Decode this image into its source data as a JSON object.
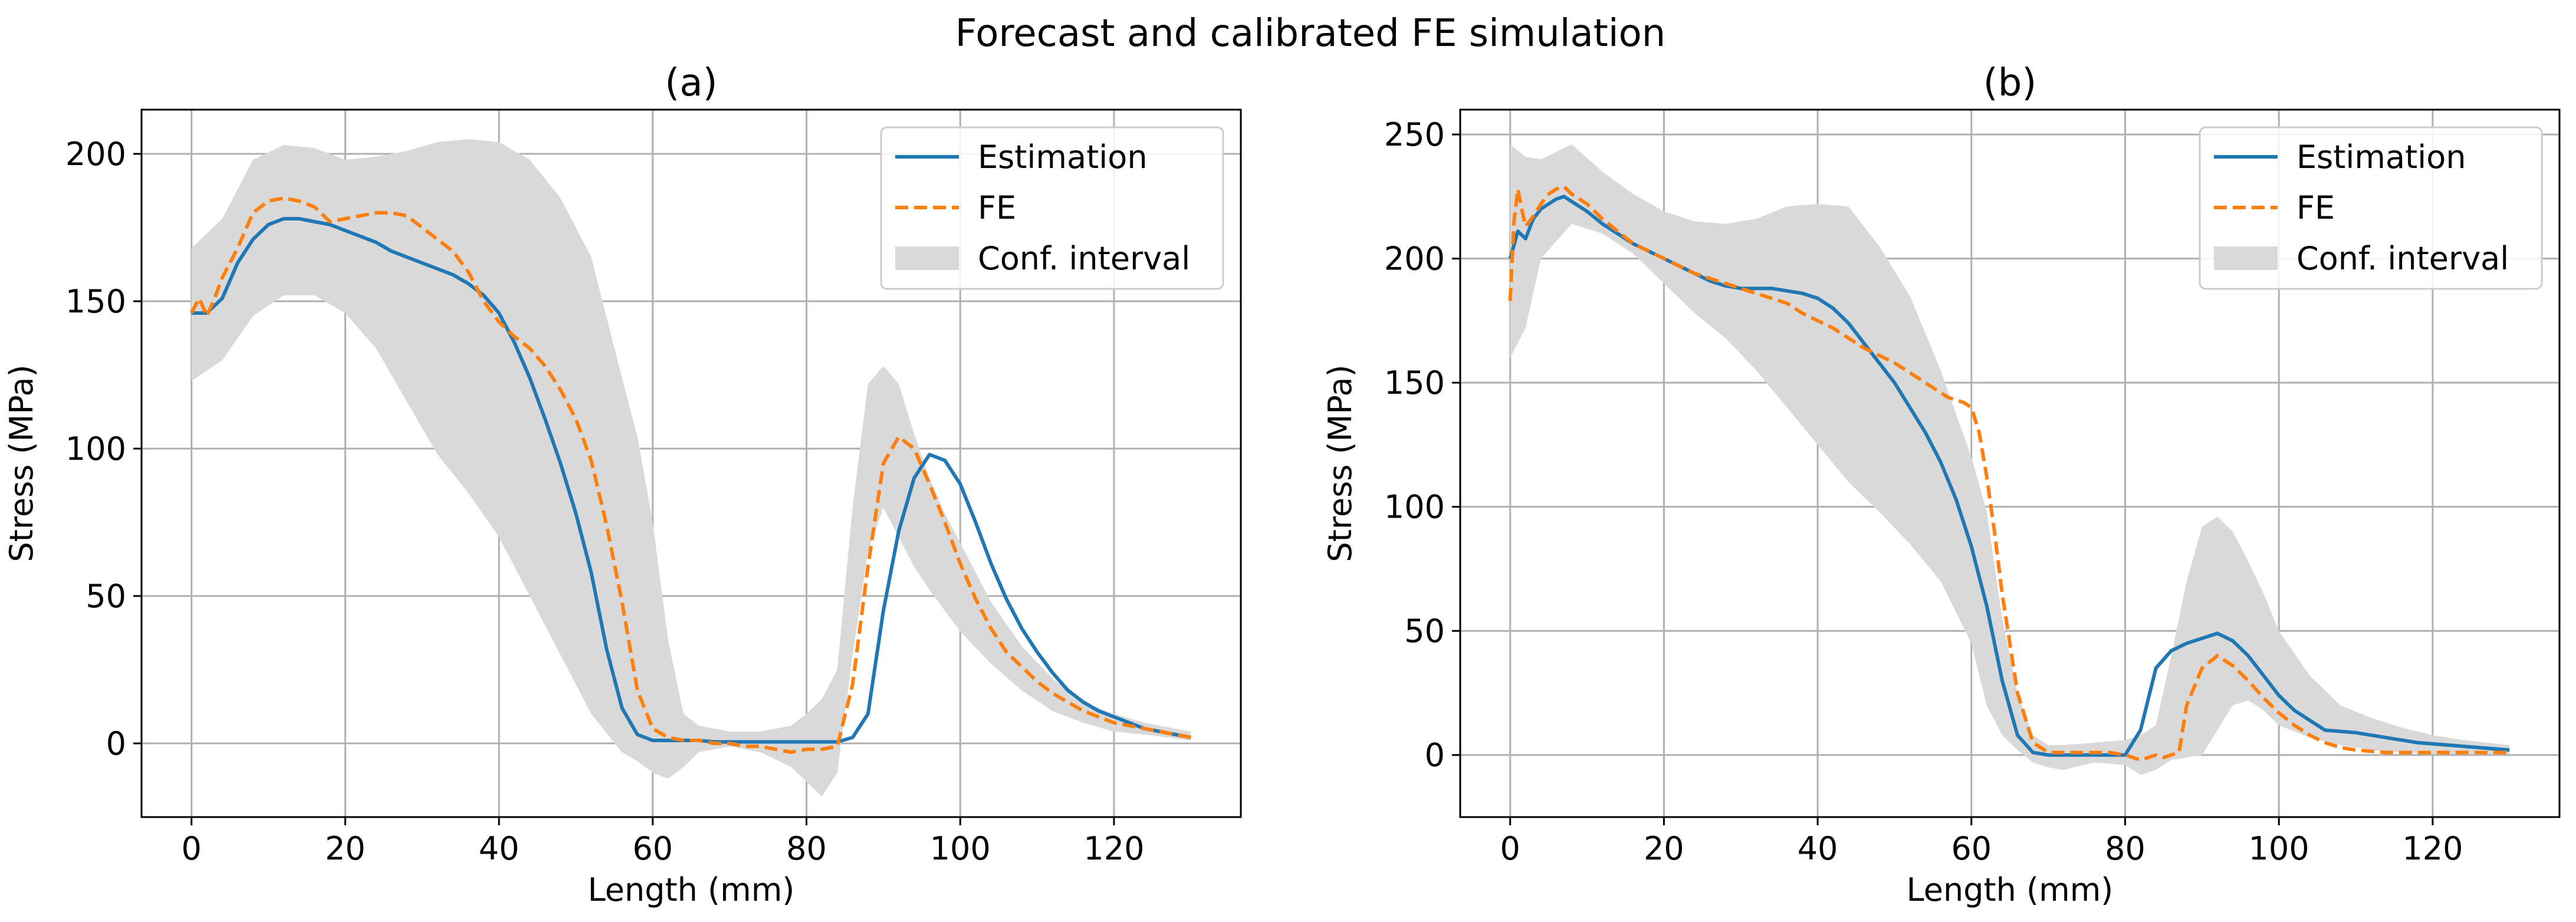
{
  "suptitle": "Forecast and calibrated FE simulation",
  "colors": {
    "estimation": "#1f77b4",
    "fe": "#ff7f0e",
    "conf": "#d9d9d9",
    "grid": "#b0b0b0"
  },
  "legend": {
    "items": [
      "Estimation",
      "FE",
      "Conf. interval"
    ],
    "placement": "upper-right"
  },
  "chart_data": [
    {
      "type": "line",
      "title": "(a)",
      "xlabel": "Length (mm)",
      "ylabel": "Stress (MPa)",
      "xlim": [
        -6.5,
        136.5
      ],
      "ylim": [
        -25,
        215
      ],
      "xticks": [
        0,
        20,
        40,
        60,
        80,
        100,
        120
      ],
      "yticks": [
        0,
        50,
        100,
        150,
        200
      ],
      "grid": true,
      "series": [
        {
          "name": "Estimation",
          "style": "solid",
          "x": [
            0,
            2,
            4,
            6,
            8,
            10,
            12,
            14,
            16,
            18,
            20,
            22,
            24,
            26,
            28,
            30,
            32,
            34,
            36,
            38,
            40,
            42,
            44,
            46,
            48,
            50,
            52,
            54,
            56,
            58,
            60,
            62,
            64,
            66,
            68,
            70,
            72,
            74,
            76,
            78,
            80,
            82,
            84,
            86,
            88,
            90,
            92,
            94,
            96,
            98,
            100,
            102,
            104,
            106,
            108,
            110,
            112,
            114,
            116,
            118,
            120,
            122,
            124,
            126,
            128,
            130
          ],
          "y": [
            146,
            146,
            151,
            163,
            171,
            176,
            178,
            178,
            177,
            176,
            174,
            172,
            170,
            167,
            165,
            163,
            161,
            159,
            156,
            152,
            146,
            136,
            124,
            110,
            95,
            78,
            58,
            32,
            12,
            3,
            1,
            1,
            1,
            1,
            0.5,
            0.5,
            0.5,
            0.5,
            0.5,
            0.5,
            0.5,
            0.5,
            0.5,
            2,
            10,
            45,
            72,
            90,
            98,
            96,
            88,
            75,
            61,
            49,
            39,
            31,
            24,
            18,
            14,
            11,
            9,
            7,
            5,
            4,
            3,
            2
          ]
        },
        {
          "name": "FE",
          "style": "dashed",
          "x": [
            0,
            1,
            2,
            3,
            4,
            6,
            8,
            10,
            12,
            14,
            16,
            18,
            20,
            22,
            24,
            26,
            28,
            30,
            32,
            34,
            36,
            38,
            40,
            42,
            44,
            46,
            48,
            50,
            52,
            54,
            56,
            58,
            60,
            62,
            64,
            66,
            68,
            70,
            72,
            74,
            76,
            78,
            80,
            82,
            84,
            86,
            88,
            90,
            92,
            94,
            96,
            98,
            100,
            102,
            104,
            106,
            108,
            110,
            112,
            114,
            116,
            118,
            120,
            122,
            124,
            126,
            128,
            130
          ],
          "y": [
            146,
            151,
            145,
            151,
            158,
            168,
            180,
            184,
            185,
            184,
            182,
            177,
            178,
            179,
            180,
            180,
            179,
            175,
            171,
            167,
            160,
            150,
            143,
            138,
            134,
            128,
            120,
            110,
            96,
            74,
            48,
            18,
            5,
            2,
            1,
            1,
            0,
            0,
            -1,
            -1,
            -2,
            -3,
            -2,
            -2,
            -1,
            20,
            60,
            95,
            104,
            100,
            88,
            75,
            61,
            49,
            39,
            31,
            26,
            21,
            17,
            14,
            11,
            9,
            7,
            6,
            5,
            4,
            3,
            2
          ]
        }
      ],
      "conf_interval": {
        "name": "Conf. interval",
        "x": [
          0,
          4,
          8,
          12,
          16,
          20,
          24,
          28,
          32,
          36,
          40,
          44,
          48,
          52,
          56,
          58,
          60,
          62,
          64,
          66,
          70,
          74,
          78,
          80,
          82,
          84,
          86,
          88,
          90,
          92,
          94,
          96,
          98,
          100,
          104,
          108,
          112,
          116,
          120,
          124,
          130
        ],
        "lower": [
          123,
          130,
          145,
          152,
          152,
          146,
          134,
          116,
          98,
          85,
          70,
          50,
          30,
          10,
          -3,
          -6,
          -10,
          -12,
          -8,
          -3,
          -1,
          -3,
          -8,
          -13,
          -18,
          -10,
          30,
          65,
          80,
          70,
          60,
          52,
          45,
          38,
          27,
          18,
          11,
          7,
          4,
          3,
          1
        ],
        "upper": [
          168,
          178,
          198,
          203,
          202,
          198,
          199,
          201,
          204,
          205,
          204,
          198,
          185,
          165,
          124,
          104,
          75,
          35,
          10,
          6,
          4,
          4,
          6,
          10,
          15,
          25,
          80,
          122,
          128,
          122,
          105,
          90,
          78,
          68,
          48,
          33,
          22,
          14,
          10,
          7,
          4
        ]
      }
    },
    {
      "type": "line",
      "title": "(b)",
      "xlabel": "Length (mm)",
      "ylabel": "Stress (MPa)",
      "xlim": [
        -6.5,
        136.5
      ],
      "ylim": [
        -25,
        260
      ],
      "xticks": [
        0,
        20,
        40,
        60,
        80,
        100,
        120
      ],
      "yticks": [
        0,
        50,
        100,
        150,
        200,
        250
      ],
      "grid": true,
      "series": [
        {
          "name": "Estimation",
          "style": "solid",
          "x": [
            0,
            1,
            2,
            3,
            4,
            5,
            6,
            7,
            8,
            10,
            12,
            14,
            16,
            18,
            20,
            22,
            24,
            26,
            28,
            30,
            32,
            34,
            36,
            38,
            40,
            42,
            44,
            46,
            48,
            50,
            52,
            54,
            56,
            58,
            60,
            62,
            64,
            66,
            68,
            70,
            72,
            74,
            76,
            78,
            80,
            82,
            84,
            86,
            88,
            90,
            92,
            94,
            96,
            98,
            100,
            102,
            104,
            106,
            110,
            114,
            118,
            122,
            126,
            130
          ],
          "y": [
            200,
            211,
            208,
            216,
            220,
            222,
            224,
            225,
            223,
            219,
            214,
            210,
            206,
            203,
            200,
            197,
            194,
            191,
            189,
            188,
            188,
            188,
            187,
            186,
            184,
            180,
            174,
            166,
            158,
            150,
            140,
            130,
            118,
            103,
            84,
            60,
            30,
            8,
            1,
            0,
            0,
            0,
            0,
            0,
            0,
            10,
            35,
            42,
            45,
            47,
            49,
            46,
            40,
            32,
            24,
            18,
            14,
            10,
            9,
            7,
            5,
            4,
            3,
            2
          ]
        },
        {
          "name": "FE",
          "style": "dashed",
          "x": [
            0,
            0.5,
            1,
            1.5,
            2,
            3,
            4,
            5,
            6,
            7,
            8,
            10,
            12,
            14,
            16,
            18,
            20,
            22,
            24,
            26,
            28,
            30,
            32,
            34,
            36,
            38,
            40,
            42,
            44,
            46,
            48,
            50,
            52,
            54,
            56,
            57,
            58,
            59,
            60,
            61,
            62,
            63,
            64,
            66,
            68,
            70,
            72,
            74,
            76,
            78,
            80,
            82,
            84,
            85,
            86,
            87,
            88,
            90,
            92,
            94,
            96,
            98,
            100,
            102,
            104,
            106,
            108,
            110,
            114,
            118,
            122,
            126,
            130
          ],
          "y": [
            183,
            215,
            228,
            220,
            213,
            217,
            222,
            226,
            228,
            229,
            226,
            222,
            216,
            211,
            206,
            203,
            200,
            197,
            194,
            192,
            190,
            188,
            186,
            184,
            182,
            178,
            175,
            172,
            168,
            164,
            161,
            158,
            154,
            150,
            146,
            144,
            143,
            142,
            140,
            130,
            112,
            90,
            65,
            25,
            5,
            1,
            1,
            1,
            1,
            1,
            0,
            -2,
            0,
            -1,
            0,
            1,
            20,
            35,
            40,
            36,
            30,
            23,
            17,
            12,
            8,
            5,
            3,
            2,
            1,
            1,
            1,
            1,
            1
          ]
        }
      ],
      "conf_interval": {
        "name": "Conf. interval",
        "x": [
          0,
          2,
          4,
          8,
          12,
          16,
          20,
          24,
          28,
          32,
          36,
          40,
          44,
          48,
          52,
          56,
          60,
          62,
          64,
          66,
          68,
          70,
          72,
          76,
          80,
          82,
          84,
          86,
          88,
          90,
          92,
          94,
          96,
          98,
          100,
          104,
          108,
          112,
          116,
          120,
          124,
          130
        ],
        "lower": [
          160,
          172,
          200,
          214,
          210,
          202,
          190,
          178,
          168,
          155,
          140,
          125,
          110,
          98,
          85,
          70,
          45,
          20,
          8,
          2,
          -3,
          -5,
          -6,
          -3,
          -4,
          -8,
          -6,
          -2,
          -1,
          0,
          10,
          20,
          22,
          18,
          12,
          7,
          4,
          2,
          1,
          0.5,
          0.3,
          0.2
        ],
        "upper": [
          246,
          241,
          240,
          246,
          235,
          226,
          219,
          215,
          214,
          216,
          221,
          222,
          221,
          205,
          185,
          155,
          120,
          98,
          55,
          25,
          8,
          4,
          4,
          5,
          6,
          8,
          12,
          40,
          70,
          92,
          96,
          90,
          78,
          65,
          50,
          32,
          20,
          15,
          11,
          8,
          6,
          4
        ]
      }
    }
  ]
}
